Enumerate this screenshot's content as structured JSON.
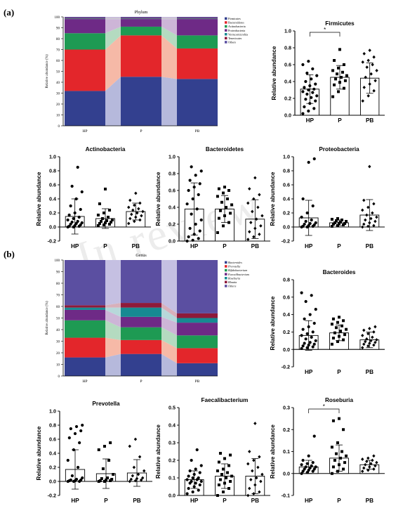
{
  "figure": {
    "panel_a_label": "(a)",
    "panel_b_label": "(b)",
    "watermark": "In review"
  },
  "colors": {
    "blue": "#33408f",
    "red": "#e3262b",
    "green": "#1e9a53",
    "purple": "#6e2a86",
    "teal": "#178a92",
    "maroon": "#8e1a3a",
    "lavender": "#5b4fa1",
    "band_blue": "#b6b9dc",
    "band_red": "#f6b9a7",
    "band_green": "#b4dbc0",
    "band_purple": "#cdb5d7"
  },
  "chart_data": [
    {
      "id": "phylum",
      "type": "area",
      "title": "Phylum",
      "ylabel": "Relative abundance (%)",
      "categories": [
        "HP",
        "P",
        "PB"
      ],
      "ylim": [
        0,
        100
      ],
      "yticks": [
        "0",
        "10",
        "20",
        "30",
        "40",
        "50",
        "60",
        "70",
        "80",
        "90",
        "100"
      ],
      "series": [
        {
          "name": "Firmicutes",
          "color": "#33408f",
          "values": [
            32,
            45,
            43
          ]
        },
        {
          "name": "Bacteroidetes",
          "color": "#e3262b",
          "values": [
            38,
            38,
            28
          ]
        },
        {
          "name": "Actinobacteria",
          "color": "#1e9a53",
          "values": [
            15,
            8,
            12
          ]
        },
        {
          "name": "Proteobacteria",
          "color": "#6e2a86",
          "values": [
            13,
            7,
            15
          ]
        },
        {
          "name": "Verrucomicrobia",
          "color": "#178a92",
          "values": [
            0.5,
            0.5,
            0.5
          ]
        },
        {
          "name": "Tenericutes",
          "color": "#8e1a3a",
          "values": [
            0.5,
            0.5,
            0.5
          ]
        },
        {
          "name": "Others",
          "color": "#5b4fa1",
          "values": [
            1,
            1,
            1
          ]
        }
      ]
    },
    {
      "id": "firmicutes",
      "type": "bar",
      "title": "Firmicutes",
      "ylabel": "Relative abundance",
      "ylim": [
        0,
        1.0
      ],
      "yticks": [
        "0.0",
        "0.2",
        "0.4",
        "0.6",
        "0.8",
        "1.0"
      ],
      "categories": [
        "HP",
        "P",
        "PB"
      ],
      "means": [
        0.31,
        0.45,
        0.44
      ],
      "sd": [
        0.17,
        0.14,
        0.18
      ],
      "sig": {
        "from": 0,
        "to": 1,
        "label": "*"
      },
      "points": [
        [
          0.02,
          0.05,
          0.08,
          0.1,
          0.14,
          0.17,
          0.19,
          0.21,
          0.23,
          0.25,
          0.27,
          0.28,
          0.3,
          0.31,
          0.33,
          0.35,
          0.37,
          0.4,
          0.43,
          0.47,
          0.5,
          0.55,
          0.6,
          0.64
        ],
        [
          0.22,
          0.28,
          0.32,
          0.36,
          0.39,
          0.41,
          0.43,
          0.45,
          0.47,
          0.49,
          0.51,
          0.53,
          0.56,
          0.6,
          0.65,
          0.78
        ],
        [
          0.17,
          0.23,
          0.29,
          0.33,
          0.37,
          0.41,
          0.45,
          0.49,
          0.53,
          0.57,
          0.6,
          0.63,
          0.65,
          0.69,
          0.73,
          0.77
        ]
      ]
    },
    {
      "id": "actinobacteria",
      "type": "bar",
      "title": "Actinobacteria",
      "ylabel": "Relative abundance",
      "ylim": [
        -0.2,
        1.0
      ],
      "yticks": [
        "-0.2",
        "0.0",
        "0.2",
        "0.4",
        "0.6",
        "0.8",
        "1.0"
      ],
      "categories": [
        "HP",
        "P",
        "PB"
      ],
      "means": [
        0.15,
        0.12,
        0.22
      ],
      "sd": [
        0.25,
        0.14,
        0.12
      ],
      "points": [
        [
          0.0,
          0.0,
          0.01,
          0.01,
          0.02,
          0.03,
          0.04,
          0.05,
          0.06,
          0.07,
          0.08,
          0.1,
          0.12,
          0.14,
          0.17,
          0.2,
          0.25,
          0.3,
          0.4,
          0.5,
          0.58,
          0.85
        ],
        [
          0.02,
          0.03,
          0.04,
          0.05,
          0.06,
          0.07,
          0.08,
          0.09,
          0.1,
          0.12,
          0.14,
          0.17,
          0.2,
          0.24,
          0.33,
          0.54
        ],
        [
          0.05,
          0.08,
          0.1,
          0.12,
          0.14,
          0.16,
          0.18,
          0.2,
          0.22,
          0.24,
          0.26,
          0.28,
          0.31,
          0.34,
          0.38,
          0.48
        ]
      ]
    },
    {
      "id": "bacteroidetes",
      "type": "bar",
      "title": "Bacteroidetes",
      "ylabel": "Relative abundance",
      "ylim": [
        0,
        1.0
      ],
      "yticks": [
        "0.0",
        "0.2",
        "0.4",
        "0.6",
        "0.8",
        "1.0"
      ],
      "categories": [
        "HP",
        "P",
        "PB"
      ],
      "means": [
        0.38,
        0.38,
        0.26
      ],
      "sd": [
        0.31,
        0.16,
        0.23
      ],
      "points": [
        [
          0.0,
          0.01,
          0.03,
          0.05,
          0.08,
          0.12,
          0.15,
          0.2,
          0.25,
          0.32,
          0.38,
          0.44,
          0.5,
          0.55,
          0.6,
          0.64,
          0.68,
          0.72,
          0.78,
          0.83,
          0.88
        ],
        [
          0.1,
          0.18,
          0.22,
          0.27,
          0.3,
          0.33,
          0.36,
          0.4,
          0.43,
          0.46,
          0.5,
          0.53,
          0.57,
          0.6,
          0.62,
          0.64
        ],
        [
          0.02,
          0.05,
          0.08,
          0.11,
          0.15,
          0.18,
          0.22,
          0.26,
          0.3,
          0.35,
          0.4,
          0.45,
          0.5,
          0.55,
          0.62,
          0.75
        ]
      ]
    },
    {
      "id": "proteobacteria",
      "type": "bar",
      "title": "Proteobacteria",
      "ylabel": "Relative abundance",
      "ylim": [
        -0.2,
        1.0
      ],
      "yticks": [
        "-0.2",
        "0.0",
        "0.2",
        "0.4",
        "0.6",
        "0.8",
        "1.0"
      ],
      "categories": [
        "HP",
        "P",
        "PB"
      ],
      "means": [
        0.13,
        0.06,
        0.17
      ],
      "sd": [
        0.25,
        0.04,
        0.22
      ],
      "points": [
        [
          0.0,
          0.0,
          0.01,
          0.01,
          0.02,
          0.03,
          0.04,
          0.05,
          0.06,
          0.08,
          0.1,
          0.14,
          0.2,
          0.3,
          0.4,
          0.92,
          0.97
        ],
        [
          0.01,
          0.02,
          0.03,
          0.04,
          0.05,
          0.05,
          0.06,
          0.07,
          0.08,
          0.09,
          0.1,
          0.11,
          0.12
        ],
        [
          0.0,
          0.01,
          0.02,
          0.04,
          0.06,
          0.08,
          0.1,
          0.12,
          0.14,
          0.17,
          0.2,
          0.24,
          0.28,
          0.33,
          0.38,
          0.86
        ]
      ]
    },
    {
      "id": "genus",
      "type": "area",
      "title": "Genus",
      "ylabel": "Relative abundance (%)",
      "categories": [
        "HP",
        "P",
        "PB"
      ],
      "ylim": [
        0,
        100
      ],
      "yticks": [
        "0",
        "10",
        "20",
        "30",
        "40",
        "50",
        "60",
        "70",
        "80",
        "90",
        "100"
      ],
      "series": [
        {
          "name": "Bacteroides",
          "color": "#33408f",
          "values": [
            16,
            19,
            11
          ]
        },
        {
          "name": "Prevotella",
          "color": "#e3262b",
          "values": [
            17,
            12,
            13
          ]
        },
        {
          "name": "Bifidobacterium",
          "color": "#1e9a53",
          "values": [
            15,
            11,
            11
          ]
        },
        {
          "name": "Faecalibacterium",
          "color": "#6e2a86",
          "values": [
            9,
            9,
            11
          ]
        },
        {
          "name": "Roseburia",
          "color": "#178a92",
          "values": [
            2,
            8,
            4
          ]
        },
        {
          "name": "Blautia",
          "color": "#8e1a3a",
          "values": [
            2,
            4,
            4
          ]
        },
        {
          "name": "Others",
          "color": "#5b4fa1",
          "values": [
            39,
            37,
            46
          ]
        }
      ]
    },
    {
      "id": "bacteroides",
      "type": "bar",
      "title": "Bacteroides",
      "ylabel": "Relative abundance",
      "ylim": [
        -0.2,
        0.8
      ],
      "yticks": [
        "-0.2",
        "0.0",
        "0.2",
        "0.4",
        "0.6",
        "0.8"
      ],
      "categories": [
        "HP",
        "P",
        "PB"
      ],
      "means": [
        0.16,
        0.19,
        0.11
      ],
      "sd": [
        0.17,
        0.09,
        0.09
      ],
      "points": [
        [
          0.01,
          0.02,
          0.03,
          0.04,
          0.05,
          0.06,
          0.07,
          0.08,
          0.1,
          0.12,
          0.14,
          0.16,
          0.18,
          0.2,
          0.23,
          0.26,
          0.3,
          0.35,
          0.4,
          0.46,
          0.55,
          0.62,
          0.65
        ],
        [
          0.06,
          0.09,
          0.11,
          0.13,
          0.15,
          0.17,
          0.19,
          0.21,
          0.23,
          0.25,
          0.27,
          0.29,
          0.31,
          0.33,
          0.35,
          0.37
        ],
        [
          0.02,
          0.04,
          0.05,
          0.06,
          0.07,
          0.08,
          0.09,
          0.1,
          0.11,
          0.12,
          0.14,
          0.16,
          0.18,
          0.2,
          0.22,
          0.24,
          0.26
        ]
      ]
    },
    {
      "id": "prevotella",
      "type": "bar",
      "title": "Prevotella",
      "ylabel": "Relative abundance",
      "ylim": [
        -0.2,
        1.0
      ],
      "yticks": [
        "-0.2",
        "0.0",
        "0.2",
        "0.4",
        "0.6",
        "0.8",
        "1.0"
      ],
      "categories": [
        "HP",
        "P",
        "PB"
      ],
      "means": [
        0.17,
        0.11,
        0.12
      ],
      "sd": [
        0.28,
        0.21,
        0.19
      ],
      "points": [
        [
          0.0,
          0.0,
          0.0,
          0.01,
          0.01,
          0.02,
          0.02,
          0.03,
          0.05,
          0.08,
          0.2,
          0.3,
          0.45,
          0.55,
          0.62,
          0.68,
          0.72,
          0.75,
          0.78,
          0.8
        ],
        [
          0.0,
          0.0,
          0.01,
          0.01,
          0.02,
          0.03,
          0.04,
          0.05,
          0.1,
          0.18,
          0.3,
          0.45,
          0.5,
          0.55
        ],
        [
          0.0,
          0.01,
          0.02,
          0.03,
          0.04,
          0.05,
          0.08,
          0.1,
          0.15,
          0.2,
          0.35,
          0.5,
          0.6
        ]
      ]
    },
    {
      "id": "faecalibacterium",
      "type": "bar",
      "title": "Faecalibacterium",
      "ylabel": "Relative abundance",
      "ylim": [
        0,
        0.5
      ],
      "yticks": [
        "0.0",
        "0.1",
        "0.2",
        "0.3",
        "0.4",
        "0.5"
      ],
      "categories": [
        "HP",
        "P",
        "PB"
      ],
      "means": [
        0.09,
        0.11,
        0.11
      ],
      "sd": [
        0.05,
        0.07,
        0.1
      ],
      "points": [
        [
          0.01,
          0.02,
          0.03,
          0.04,
          0.05,
          0.06,
          0.07,
          0.07,
          0.08,
          0.08,
          0.09,
          0.09,
          0.1,
          0.1,
          0.11,
          0.12,
          0.13,
          0.14,
          0.15,
          0.17,
          0.2,
          0.26
        ],
        [
          0.0,
          0.02,
          0.04,
          0.06,
          0.07,
          0.08,
          0.09,
          0.1,
          0.11,
          0.12,
          0.13,
          0.14,
          0.15,
          0.17,
          0.19,
          0.21,
          0.23,
          0.24
        ],
        [
          0.0,
          0.01,
          0.02,
          0.04,
          0.06,
          0.08,
          0.09,
          0.1,
          0.12,
          0.14,
          0.16,
          0.18,
          0.2,
          0.22,
          0.25,
          0.41
        ]
      ]
    },
    {
      "id": "roseburia",
      "type": "bar",
      "title": "Roseburia",
      "ylabel": "Relative abundance",
      "ylim": [
        -0.1,
        0.3
      ],
      "yticks": [
        "-0.1",
        "0.0",
        "0.1",
        "0.2",
        "0.3"
      ],
      "categories": [
        "HP",
        "P",
        "PB"
      ],
      "means": [
        0.03,
        0.07,
        0.04
      ],
      "sd": [
        0.03,
        0.06,
        0.02
      ],
      "sig": {
        "from": 0,
        "to": 1,
        "label": "*"
      },
      "points": [
        [
          0.0,
          0.005,
          0.01,
          0.01,
          0.015,
          0.02,
          0.02,
          0.025,
          0.03,
          0.03,
          0.035,
          0.04,
          0.045,
          0.05,
          0.06,
          0.08,
          0.17
        ],
        [
          0.0,
          0.01,
          0.02,
          0.03,
          0.04,
          0.05,
          0.06,
          0.07,
          0.08,
          0.09,
          0.1,
          0.12,
          0.14,
          0.2,
          0.24,
          0.25
        ],
        [
          0.01,
          0.015,
          0.02,
          0.025,
          0.03,
          0.035,
          0.04,
          0.045,
          0.05,
          0.055,
          0.06,
          0.065,
          0.07,
          0.08
        ]
      ]
    }
  ]
}
